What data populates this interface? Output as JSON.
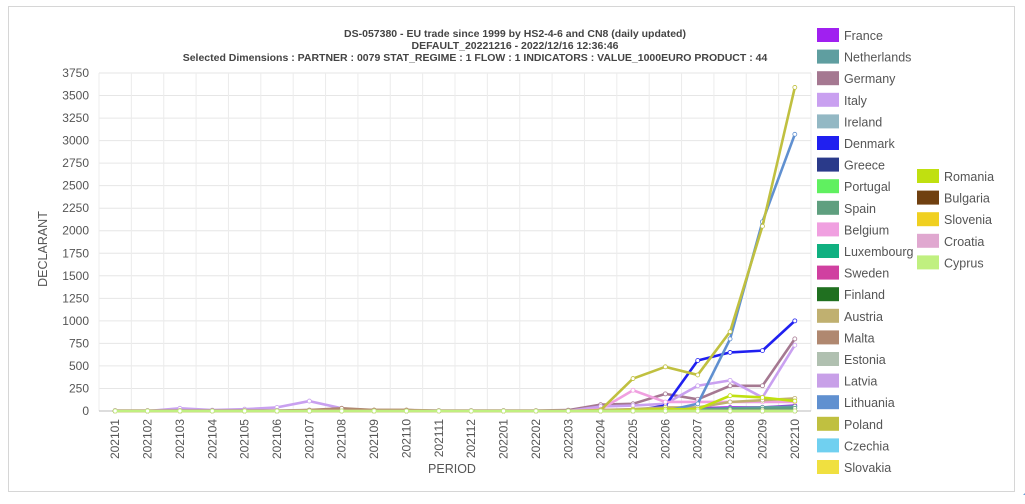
{
  "chart_data": {
    "type": "line",
    "title_lines": [
      "DS-057380 - EU trade since 1999 by HS2-4-6 and CN8 (daily updated)",
      "DEFAULT_20221216 - 2022/12/16 12:36:46",
      "Selected Dimensions : PARTNER : 0079   STAT_REGIME : 1   FLOW : 1   INDICATORS : VALUE_1000EURO   PRODUCT : 44"
    ],
    "xlabel": "PERIOD",
    "ylabel": "DECLARANT",
    "ylim": [
      0,
      3750
    ],
    "yticks": [
      0,
      250,
      500,
      750,
      1000,
      1250,
      1500,
      1750,
      2000,
      2250,
      2500,
      2750,
      3000,
      3250,
      3500,
      3750
    ],
    "grid": true,
    "legend_position": "right",
    "categories": [
      "202101",
      "202102",
      "202103",
      "202104",
      "202105",
      "202106",
      "202107",
      "202108",
      "202109",
      "202110",
      "202111",
      "202112",
      "202201",
      "202202",
      "202203",
      "202204",
      "202205",
      "202206",
      "202207",
      "202208",
      "202209",
      "202210"
    ],
    "series": [
      {
        "name": "France",
        "color": "#a020f0",
        "values": [
          0,
          0,
          0,
          0,
          0,
          0,
          0,
          0,
          0,
          0,
          0,
          0,
          0,
          0,
          0,
          10,
          15,
          20,
          30,
          40,
          40,
          60
        ]
      },
      {
        "name": "Netherlands",
        "color": "#5f9ea0",
        "values": [
          0,
          0,
          0,
          0,
          0,
          0,
          0,
          0,
          0,
          0,
          0,
          0,
          0,
          0,
          0,
          5,
          10,
          15,
          20,
          30,
          40,
          50
        ]
      },
      {
        "name": "Germany",
        "color": "#a57891",
        "values": [
          5,
          5,
          5,
          5,
          5,
          5,
          10,
          10,
          10,
          10,
          5,
          5,
          5,
          5,
          10,
          70,
          80,
          190,
          130,
          280,
          280,
          800
        ]
      },
      {
        "name": "Italy",
        "color": "#c9a0f0",
        "values": [
          0,
          0,
          0,
          0,
          0,
          0,
          0,
          0,
          0,
          0,
          0,
          0,
          0,
          0,
          0,
          50,
          60,
          80,
          280,
          340,
          150,
          730
        ]
      },
      {
        "name": "Ireland",
        "color": "#93b8c4",
        "values": [
          0,
          0,
          0,
          0,
          0,
          0,
          0,
          0,
          0,
          0,
          0,
          0,
          0,
          0,
          0,
          0,
          0,
          0,
          0,
          0,
          0,
          0
        ]
      },
      {
        "name": "Denmark",
        "color": "#2020f0",
        "values": [
          0,
          0,
          0,
          0,
          0,
          0,
          0,
          0,
          0,
          0,
          0,
          0,
          0,
          0,
          0,
          0,
          0,
          60,
          560,
          650,
          670,
          1000
        ]
      },
      {
        "name": "Greece",
        "color": "#2a3a8a",
        "values": [
          0,
          0,
          0,
          0,
          0,
          0,
          0,
          0,
          0,
          0,
          0,
          0,
          0,
          0,
          0,
          0,
          0,
          0,
          0,
          0,
          0,
          0
        ]
      },
      {
        "name": "Portugal",
        "color": "#60f060",
        "values": [
          0,
          0,
          0,
          0,
          0,
          0,
          0,
          0,
          0,
          0,
          0,
          0,
          0,
          0,
          0,
          0,
          0,
          0,
          0,
          0,
          0,
          0
        ]
      },
      {
        "name": "Spain",
        "color": "#5f9f7f",
        "values": [
          0,
          0,
          0,
          0,
          0,
          0,
          0,
          0,
          0,
          0,
          0,
          0,
          0,
          0,
          0,
          0,
          0,
          10,
          10,
          20,
          20,
          30
        ]
      },
      {
        "name": "Belgium",
        "color": "#f0a0e0",
        "values": [
          0,
          0,
          0,
          0,
          0,
          0,
          0,
          0,
          0,
          0,
          0,
          0,
          0,
          0,
          0,
          20,
          230,
          100,
          100,
          100,
          100,
          100
        ]
      },
      {
        "name": "Luxembourg",
        "color": "#10b080",
        "values": [
          0,
          0,
          0,
          0,
          0,
          0,
          0,
          0,
          0,
          0,
          0,
          0,
          0,
          0,
          0,
          0,
          0,
          0,
          0,
          0,
          0,
          0
        ]
      },
      {
        "name": "Sweden",
        "color": "#d040a0",
        "values": [
          0,
          0,
          0,
          0,
          0,
          0,
          0,
          0,
          0,
          0,
          0,
          0,
          0,
          0,
          0,
          0,
          0,
          0,
          0,
          0,
          0,
          0
        ]
      },
      {
        "name": "Finland",
        "color": "#207020",
        "values": [
          0,
          0,
          0,
          0,
          0,
          0,
          0,
          0,
          0,
          0,
          0,
          0,
          0,
          0,
          0,
          0,
          0,
          0,
          0,
          0,
          0,
          0
        ]
      },
      {
        "name": "Austria",
        "color": "#c0b070",
        "values": [
          0,
          0,
          0,
          0,
          0,
          0,
          0,
          20,
          10,
          10,
          0,
          0,
          0,
          0,
          0,
          10,
          20,
          40,
          40,
          100,
          120,
          140
        ]
      },
      {
        "name": "Malta",
        "color": "#b08870",
        "values": [
          0,
          0,
          0,
          0,
          0,
          0,
          10,
          30,
          10,
          10,
          0,
          0,
          0,
          0,
          0,
          0,
          0,
          0,
          0,
          0,
          0,
          0
        ]
      },
      {
        "name": "Estonia",
        "color": "#b0c0b0",
        "values": [
          0,
          0,
          0,
          0,
          0,
          0,
          0,
          0,
          0,
          0,
          0,
          0,
          0,
          0,
          0,
          0,
          0,
          0,
          0,
          0,
          0,
          0
        ]
      },
      {
        "name": "Latvia",
        "color": "#c8a0e8",
        "values": [
          0,
          0,
          0,
          0,
          0,
          0,
          0,
          0,
          0,
          0,
          0,
          0,
          0,
          0,
          0,
          0,
          0,
          0,
          0,
          0,
          0,
          0
        ]
      },
      {
        "name": "Lithuania",
        "color": "#6090d0",
        "values": [
          0,
          0,
          0,
          0,
          0,
          0,
          0,
          0,
          0,
          0,
          0,
          0,
          0,
          0,
          0,
          0,
          0,
          0,
          80,
          800,
          2100,
          3070
        ]
      },
      {
        "name": "Poland",
        "color": "#c0c040",
        "values": [
          0,
          0,
          0,
          0,
          0,
          0,
          0,
          0,
          0,
          0,
          0,
          0,
          0,
          0,
          0,
          10,
          360,
          490,
          400,
          880,
          2050,
          3590
        ]
      },
      {
        "name": "Czechia",
        "color": "#70d0f0",
        "values": [
          0,
          0,
          0,
          0,
          0,
          0,
          0,
          0,
          0,
          0,
          0,
          0,
          0,
          0,
          0,
          0,
          0,
          0,
          0,
          0,
          0,
          0
        ]
      },
      {
        "name": "Slovakia",
        "color": "#f0e040",
        "values": [
          0,
          0,
          0,
          0,
          0,
          0,
          0,
          0,
          0,
          0,
          0,
          0,
          0,
          0,
          0,
          0,
          0,
          0,
          0,
          0,
          0,
          0
        ]
      },
      {
        "name": "Romania",
        "color": "#c0e010",
        "values": [
          0,
          0,
          0,
          0,
          0,
          0,
          0,
          0,
          0,
          0,
          0,
          0,
          0,
          0,
          0,
          0,
          10,
          20,
          20,
          170,
          150,
          110
        ]
      },
      {
        "name": "Bulgaria",
        "color": "#704010",
        "values": [
          0,
          0,
          0,
          0,
          0,
          0,
          0,
          0,
          0,
          0,
          0,
          0,
          0,
          0,
          0,
          0,
          0,
          0,
          0,
          0,
          0,
          0
        ]
      },
      {
        "name": "Slovenia",
        "color": "#f0d020",
        "values": [
          0,
          0,
          0,
          0,
          0,
          0,
          0,
          0,
          0,
          0,
          0,
          0,
          0,
          0,
          0,
          0,
          0,
          0,
          0,
          0,
          0,
          0
        ]
      },
      {
        "name": "Croatia",
        "color": "#e0a8d0",
        "values": [
          0,
          0,
          0,
          0,
          0,
          0,
          0,
          0,
          0,
          0,
          0,
          0,
          0,
          0,
          0,
          0,
          0,
          0,
          0,
          0,
          0,
          0
        ]
      },
      {
        "name": "Cyprus",
        "color": "#c0f080",
        "values": [
          0,
          0,
          0,
          0,
          0,
          0,
          0,
          0,
          0,
          0,
          0,
          0,
          0,
          0,
          0,
          0,
          0,
          0,
          0,
          0,
          0,
          0
        ]
      }
    ],
    "extra_series": [
      {
        "name": "Italy",
        "values": [
          0,
          0,
          30,
          10,
          20,
          40,
          110,
          30,
          0,
          0,
          0,
          0,
          0,
          0,
          0,
          0,
          0,
          0,
          0,
          0,
          0,
          0
        ]
      }
    ]
  }
}
